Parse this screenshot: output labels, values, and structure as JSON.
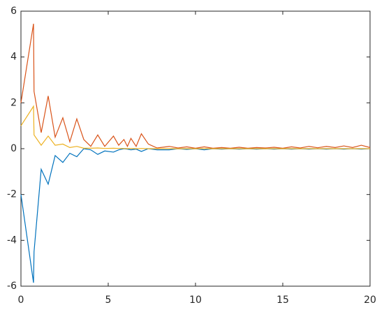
{
  "chart_data": {
    "type": "line",
    "x": [
      0,
      0.72,
      0.75,
      1.16,
      1.56,
      1.96,
      2.4,
      2.8,
      3.2,
      3.6,
      4.0,
      4.4,
      4.8,
      5.3,
      5.6,
      5.9,
      6.1,
      6.3,
      6.6,
      6.9,
      7.3,
      7.8,
      8.5,
      9,
      9.5,
      10,
      10.5,
      11,
      11.5,
      12,
      12.5,
      13,
      13.5,
      14,
      14.5,
      15,
      15.5,
      16,
      16.5,
      17,
      17.5,
      18,
      18.5,
      19,
      19.5,
      20
    ],
    "series": [
      {
        "color": "#0072bd",
        "values": [
          -2,
          -5.85,
          -4.5,
          -0.9,
          -1.55,
          -0.3,
          -0.6,
          -0.2,
          -0.35,
          0,
          -0.05,
          -0.25,
          -0.1,
          -0.15,
          -0.05,
          0,
          -0.02,
          -0.05,
          -0.02,
          -0.12,
          0,
          -0.05,
          -0.05,
          0,
          -0.03,
          0,
          -0.05,
          0,
          -0.02,
          0,
          -0.02,
          0,
          -0.02,
          0,
          -0.02,
          0,
          -0.02,
          0,
          -0.02,
          0,
          -0.02,
          0,
          -0.02,
          0,
          -0.02,
          0
        ]
      },
      {
        "color": "#d95319",
        "values": [
          2,
          5.45,
          2.5,
          0.7,
          2.3,
          0.5,
          1.35,
          0.3,
          1.3,
          0.4,
          0.1,
          0.6,
          0.1,
          0.55,
          0.15,
          0.4,
          0.1,
          0.45,
          0.1,
          0.65,
          0.2,
          0.03,
          0.1,
          0.03,
          0.08,
          0.02,
          0.08,
          0.02,
          0.05,
          0.02,
          0.06,
          0.02,
          0.05,
          0.03,
          0.06,
          0.02,
          0.08,
          0.03,
          0.1,
          0.04,
          0.1,
          0.05,
          0.12,
          0.05,
          0.15,
          0.05
        ]
      },
      {
        "color": "#edb120",
        "values": [
          1,
          1.85,
          0.6,
          0.15,
          0.55,
          0.15,
          0.2,
          0.05,
          0.1,
          0.02,
          0.02,
          0.03,
          0.01,
          0.02,
          0.01,
          0.01,
          0,
          0.01,
          0,
          0.01,
          0,
          0,
          0,
          0,
          0,
          0,
          0,
          0,
          0,
          0,
          0,
          0,
          0,
          0,
          0,
          0,
          0,
          0,
          0,
          0,
          0,
          0,
          0,
          0,
          0,
          0
        ]
      }
    ],
    "xlim": [
      0,
      20
    ],
    "xticks": [
      0,
      5,
      10,
      15,
      20
    ],
    "ylim": [
      -6,
      6
    ],
    "yticks": [
      -6,
      -4,
      -2,
      0,
      2,
      4,
      6
    ],
    "grid": false
  }
}
